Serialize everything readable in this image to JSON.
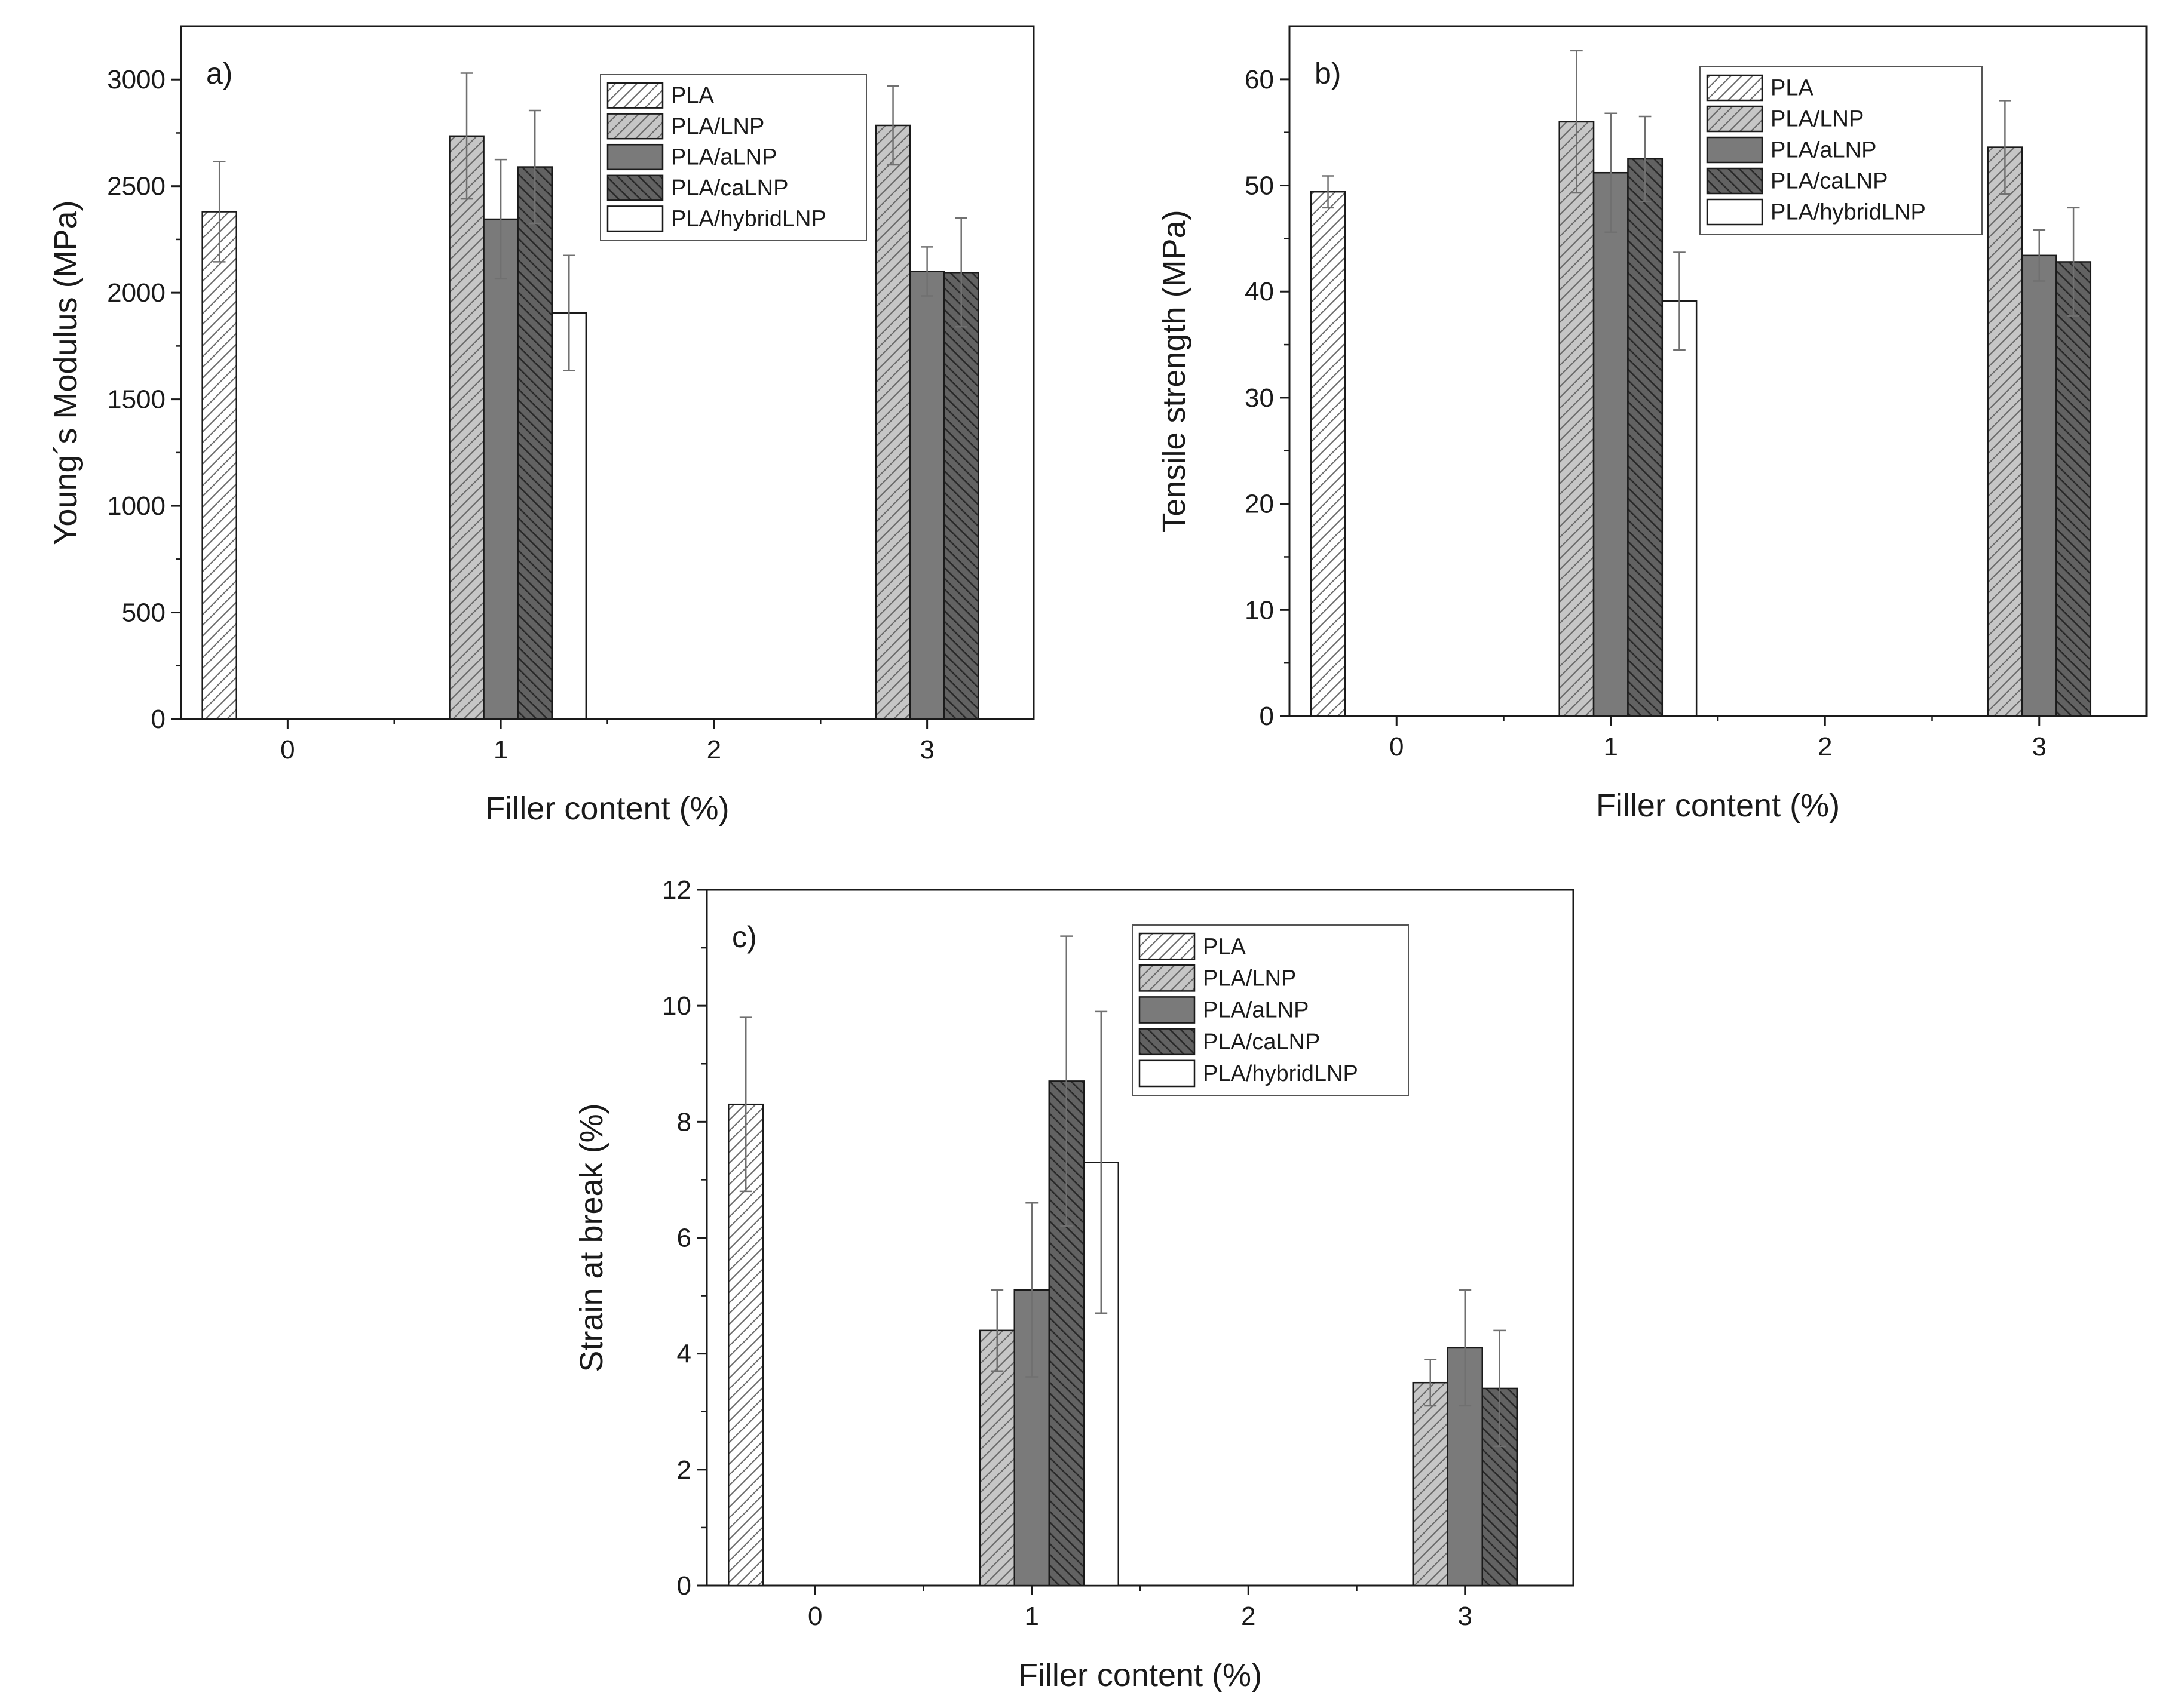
{
  "chart_data": [
    {
      "type": "bar",
      "panel_label": "a)",
      "title": "",
      "xlabel": "Filler content (%)",
      "ylabel": "Young´s Modulus (MPa)",
      "x_ticks": [
        "0",
        "1",
        "2",
        "3"
      ],
      "xlim": [
        -0.5,
        3.5
      ],
      "ylim": [
        0,
        3250
      ],
      "y_ticks": [
        0,
        500,
        1000,
        1500,
        2000,
        2500,
        3000
      ],
      "legend_position": "top-right",
      "series": [
        {
          "name": "PLA",
          "color": "#ffffff",
          "pattern": "light-hatch",
          "values": [
            {
              "x": 0,
              "y": 2380,
              "err": 235
            }
          ]
        },
        {
          "name": "PLA/LNP",
          "color": "#c8c8c8",
          "pattern": "hatch",
          "values": [
            {
              "x": 1,
              "y": 2735,
              "err": 295
            },
            {
              "x": 3,
              "y": 2785,
              "err": 185
            }
          ]
        },
        {
          "name": "PLA/aLNP",
          "color": "#7a7a7a",
          "pattern": "solid",
          "values": [
            {
              "x": 1,
              "y": 2345,
              "err": 280
            },
            {
              "x": 3,
              "y": 2100,
              "err": 115
            }
          ]
        },
        {
          "name": "PLA/caLNP",
          "color": "#626262",
          "pattern": "dark-hatch",
          "values": [
            {
              "x": 1,
              "y": 2590,
              "err": 265
            },
            {
              "x": 3,
              "y": 2095,
              "err": 255
            }
          ]
        },
        {
          "name": "PLA/hybridLNP",
          "color": "#ffffff",
          "pattern": "none",
          "values": [
            {
              "x": 1,
              "y": 1905,
              "err": 270
            }
          ]
        }
      ]
    },
    {
      "type": "bar",
      "panel_label": "b)",
      "title": "",
      "xlabel": "Filler content (%)",
      "ylabel": "Tensile strength (MPa)",
      "x_ticks": [
        "0",
        "1",
        "2",
        "3"
      ],
      "xlim": [
        -0.5,
        3.5
      ],
      "ylim": [
        0,
        65
      ],
      "y_ticks": [
        0,
        10,
        20,
        30,
        40,
        50,
        60
      ],
      "legend_position": "top-right",
      "series": [
        {
          "name": "PLA",
          "color": "#ffffff",
          "pattern": "light-hatch",
          "values": [
            {
              "x": 0,
              "y": 49.4,
              "err": 1.5
            }
          ]
        },
        {
          "name": "PLA/LNP",
          "color": "#c8c8c8",
          "pattern": "hatch",
          "values": [
            {
              "x": 1,
              "y": 56.0,
              "err": 6.7
            },
            {
              "x": 3,
              "y": 53.6,
              "err": 4.4
            }
          ]
        },
        {
          "name": "PLA/aLNP",
          "color": "#7a7a7a",
          "pattern": "solid",
          "values": [
            {
              "x": 1,
              "y": 51.2,
              "err": 5.6
            },
            {
              "x": 3,
              "y": 43.4,
              "err": 2.4
            }
          ]
        },
        {
          "name": "PLA/caLNP",
          "color": "#626262",
          "pattern": "dark-hatch",
          "values": [
            {
              "x": 1,
              "y": 52.5,
              "err": 4.0
            },
            {
              "x": 3,
              "y": 42.8,
              "err": 5.1
            }
          ]
        },
        {
          "name": "PLA/hybridLNP",
          "color": "#ffffff",
          "pattern": "none",
          "values": [
            {
              "x": 1,
              "y": 39.1,
              "err": 4.6
            }
          ]
        }
      ]
    },
    {
      "type": "bar",
      "panel_label": "c)",
      "title": "",
      "xlabel": "Filler content (%)",
      "ylabel": "Strain at break (%)",
      "x_ticks": [
        "0",
        "1",
        "2",
        "3"
      ],
      "xlim": [
        -0.5,
        3.5
      ],
      "ylim": [
        0,
        12
      ],
      "y_ticks": [
        0,
        2,
        4,
        6,
        8,
        10,
        12
      ],
      "legend_position": "top-right",
      "series": [
        {
          "name": "PLA",
          "color": "#ffffff",
          "pattern": "light-hatch",
          "values": [
            {
              "x": 0,
              "y": 8.3,
              "err": 1.5
            }
          ]
        },
        {
          "name": "PLA/LNP",
          "color": "#c8c8c8",
          "pattern": "hatch",
          "values": [
            {
              "x": 1,
              "y": 4.4,
              "err": 0.7
            },
            {
              "x": 3,
              "y": 3.5,
              "err": 0.4
            }
          ]
        },
        {
          "name": "PLA/aLNP",
          "color": "#7a7a7a",
          "pattern": "solid",
          "values": [
            {
              "x": 1,
              "y": 5.1,
              "err": 1.5
            },
            {
              "x": 3,
              "y": 4.1,
              "err": 1.0
            }
          ]
        },
        {
          "name": "PLA/caLNP",
          "color": "#626262",
          "pattern": "dark-hatch",
          "values": [
            {
              "x": 1,
              "y": 8.7,
              "err": 2.5
            },
            {
              "x": 3,
              "y": 3.4,
              "err": 1.0
            }
          ]
        },
        {
          "name": "PLA/hybridLNP",
          "color": "#ffffff",
          "pattern": "none",
          "values": [
            {
              "x": 1,
              "y": 7.3,
              "err": 2.6
            }
          ]
        }
      ]
    }
  ]
}
